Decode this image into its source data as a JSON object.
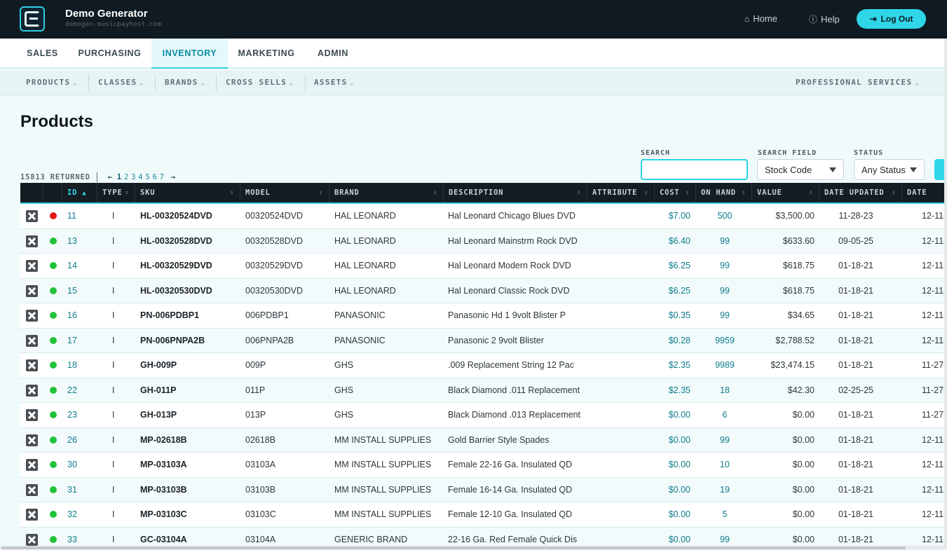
{
  "app": {
    "title": "Demo Generator",
    "subtitle": "demogen.musicpayhost.com"
  },
  "header": {
    "home": "Home",
    "help": "Help",
    "logout": "Log Out"
  },
  "tabs": [
    "SALES",
    "PURCHASING",
    "INVENTORY",
    "MARKETING",
    "ADMIN"
  ],
  "active_tab": "INVENTORY",
  "subnav": {
    "items": [
      "PRODUCTS",
      "CLASSES",
      "BRANDS",
      "CROSS SELLS",
      "ASSETS"
    ],
    "right": "PROFESSIONAL SERVICES"
  },
  "page_title": "Products",
  "filters": {
    "search_label": "SEARCH",
    "search_value": "",
    "field_label": "SEARCH FIELD",
    "field_value": "Stock Code",
    "status_label": "STATUS",
    "status_value": "Any Status"
  },
  "pager": {
    "returned": "15813 RETURNED",
    "pages": [
      "1",
      "2",
      "3",
      "4",
      "5",
      "6",
      "7"
    ],
    "current": "1"
  },
  "columns": [
    "ID",
    "TYPE",
    "SKU",
    "MODEL",
    "BRAND",
    "DESCRIPTION",
    "ATTRIBUTE",
    "COST",
    "ON HAND",
    "VALUE",
    "DATE UPDATED",
    "DATE ADDED"
  ],
  "colors": {
    "accent": "#2fd6e8",
    "header_bg": "#0f1a22",
    "active": "#21c23a",
    "inactive": "#e41818"
  },
  "rows": [
    {
      "status": "inactive",
      "id": "11",
      "type": "I",
      "sku": "HL-00320524DVD",
      "model": "00320524DVD",
      "brand": "HAL LEONARD",
      "desc": "Hal Leonard Chicago Blues DVD",
      "cost": "$7.00",
      "onhand": "500",
      "value": "$3,500.00",
      "updated": "11-28-23",
      "added": "12-11-"
    },
    {
      "status": "active",
      "id": "13",
      "type": "I",
      "sku": "HL-00320528DVD",
      "model": "00320528DVD",
      "brand": "HAL LEONARD",
      "desc": "Hal Leonard Mainstrm Rock DVD",
      "cost": "$6.40",
      "onhand": "99",
      "value": "$633.60",
      "updated": "09-05-25",
      "added": "12-11-"
    },
    {
      "status": "active",
      "id": "14",
      "type": "I",
      "sku": "HL-00320529DVD",
      "model": "00320529DVD",
      "brand": "HAL LEONARD",
      "desc": "Hal Leonard Modern Rock DVD",
      "cost": "$6.25",
      "onhand": "99",
      "value": "$618.75",
      "updated": "01-18-21",
      "added": "12-11-"
    },
    {
      "status": "active",
      "id": "15",
      "type": "I",
      "sku": "HL-00320530DVD",
      "model": "00320530DVD",
      "brand": "HAL LEONARD",
      "desc": "Hal Leonard Classic Rock DVD",
      "cost": "$6.25",
      "onhand": "99",
      "value": "$618.75",
      "updated": "01-18-21",
      "added": "12-11-"
    },
    {
      "status": "active",
      "id": "16",
      "type": "I",
      "sku": "PN-006PDBP1",
      "model": "006PDBP1",
      "brand": "PANASONIC",
      "desc": "Panasonic Hd 1 9volt Blister P",
      "cost": "$0.35",
      "onhand": "99",
      "value": "$34.65",
      "updated": "01-18-21",
      "added": "12-11-"
    },
    {
      "status": "active",
      "id": "17",
      "type": "I",
      "sku": "PN-006PNPA2B",
      "model": "006PNPA2B",
      "brand": "PANASONIC",
      "desc": "Panasonic 2 9volt Blister",
      "cost": "$0.28",
      "onhand": "9959",
      "value": "$2,788.52",
      "updated": "01-18-21",
      "added": "12-11-"
    },
    {
      "status": "active",
      "id": "18",
      "type": "I",
      "sku": "GH-009P",
      "model": "009P",
      "brand": "GHS",
      "desc": ".009 Replacement String 12 Pac",
      "cost": "$2.35",
      "onhand": "9989",
      "value": "$23,474.15",
      "updated": "01-18-21",
      "added": "11-27-"
    },
    {
      "status": "active",
      "id": "22",
      "type": "I",
      "sku": "GH-011P",
      "model": "011P",
      "brand": "GHS",
      "desc": "Black Diamond .011 Replacement",
      "cost": "$2.35",
      "onhand": "18",
      "value": "$42.30",
      "updated": "02-25-25",
      "added": "11-27-"
    },
    {
      "status": "active",
      "id": "23",
      "type": "I",
      "sku": "GH-013P",
      "model": "013P",
      "brand": "GHS",
      "desc": "Black Diamond .013 Replacement",
      "cost": "$0.00",
      "onhand": "6",
      "value": "$0.00",
      "updated": "01-18-21",
      "added": "11-27-"
    },
    {
      "status": "active",
      "id": "26",
      "type": "I",
      "sku": "MP-02618B",
      "model": "02618B",
      "brand": "MM INSTALL SUPPLIES",
      "desc": "Gold Barrier Style Spades",
      "cost": "$0.00",
      "onhand": "99",
      "value": "$0.00",
      "updated": "01-18-21",
      "added": "12-11-"
    },
    {
      "status": "active",
      "id": "30",
      "type": "I",
      "sku": "MP-03103A",
      "model": "03103A",
      "brand": "MM INSTALL SUPPLIES",
      "desc": "Female 22-16 Ga. Insulated QD",
      "cost": "$0.00",
      "onhand": "10",
      "value": "$0.00",
      "updated": "01-18-21",
      "added": "12-11-"
    },
    {
      "status": "active",
      "id": "31",
      "type": "I",
      "sku": "MP-03103B",
      "model": "03103B",
      "brand": "MM INSTALL SUPPLIES",
      "desc": "Female 16-14 Ga. Insulated QD",
      "cost": "$0.00",
      "onhand": "19",
      "value": "$0.00",
      "updated": "01-18-21",
      "added": "12-11-"
    },
    {
      "status": "active",
      "id": "32",
      "type": "I",
      "sku": "MP-03103C",
      "model": "03103C",
      "brand": "MM INSTALL SUPPLIES",
      "desc": "Female 12-10 Ga. Insulated QD",
      "cost": "$0.00",
      "onhand": "5",
      "value": "$0.00",
      "updated": "01-18-21",
      "added": "12-11-"
    },
    {
      "status": "active",
      "id": "33",
      "type": "I",
      "sku": "GC-03104A",
      "model": "03104A",
      "brand": "GENERIC BRAND",
      "desc": "22-16 Ga. Red Female Quick Dis",
      "cost": "$0.00",
      "onhand": "99",
      "value": "$0.00",
      "updated": "01-18-21",
      "added": "12-11-"
    }
  ]
}
